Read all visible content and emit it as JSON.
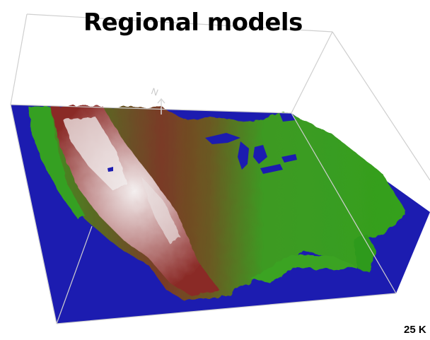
{
  "title": "Regional models",
  "north_label": "N",
  "resolution_label": "25 K",
  "colors": {
    "ocean": "#1c1cb0",
    "lowland": "#2e9a1c",
    "midland": "#8a6a2a",
    "highland": "#8c2a24",
    "peak": "#f0ecec",
    "box_edge": "#cccccc"
  },
  "icons": {
    "north_arrow": "north-arrow-icon"
  }
}
